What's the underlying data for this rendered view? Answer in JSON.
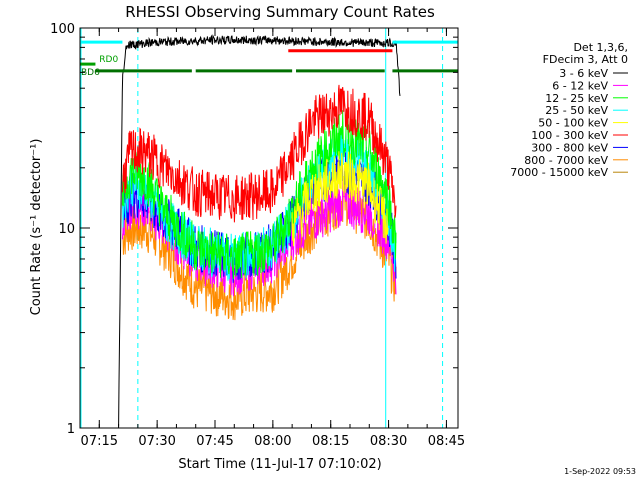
{
  "chart_data": {
    "type": "line",
    "title": "RHESSI Observing Summary Count Rates",
    "xlabel": "Start Time (11-Jul-17 07:10:02)",
    "ylabel": "Count Rate (s⁻¹ detector⁻¹)",
    "y_scale": "log",
    "ylim": [
      1,
      100
    ],
    "xlim_minutes": [
      "07:10",
      "08:48"
    ],
    "x_ticks": [
      "07:15",
      "07:30",
      "07:45",
      "08:00",
      "08:15",
      "08:30",
      "08:45"
    ],
    "y_ticks": [
      "1",
      "10",
      "100"
    ],
    "grid": false,
    "legend_placement": "right",
    "legend_header": [
      "Det 1,3,6,",
      "FDecim 3, Att 0"
    ],
    "series": [
      {
        "name": "3 - 6 keV",
        "color": "#000000",
        "points": [
          [
            "07:20",
            1
          ],
          [
            "07:21",
            55
          ],
          [
            "07:22",
            82
          ],
          [
            "07:30",
            85
          ],
          [
            "07:45",
            87
          ],
          [
            "08:00",
            87
          ],
          [
            "08:15",
            85
          ],
          [
            "08:30",
            84
          ],
          [
            "08:32",
            84
          ],
          [
            "08:33",
            45
          ]
        ]
      },
      {
        "name": "6 - 12 keV",
        "color": "#ff00ff",
        "points": [
          [
            "07:21",
            11
          ],
          [
            "07:23",
            13
          ],
          [
            "07:27",
            13
          ],
          [
            "07:32",
            10
          ],
          [
            "07:40",
            7
          ],
          [
            "07:50",
            6
          ],
          [
            "08:00",
            7
          ],
          [
            "08:05",
            9
          ],
          [
            "08:10",
            11
          ],
          [
            "08:18",
            13.5
          ],
          [
            "08:25",
            12
          ],
          [
            "08:30",
            9
          ],
          [
            "08:32",
            6
          ]
        ]
      },
      {
        "name": "12 - 25 keV",
        "color": "#00ff00",
        "points": [
          [
            "07:21",
            14
          ],
          [
            "07:23",
            19
          ],
          [
            "07:27",
            18
          ],
          [
            "07:32",
            12
          ],
          [
            "07:40",
            8
          ],
          [
            "07:50",
            7
          ],
          [
            "08:00",
            8
          ],
          [
            "08:05",
            12
          ],
          [
            "08:10",
            20
          ],
          [
            "08:18",
            30
          ],
          [
            "08:25",
            24
          ],
          [
            "08:30",
            14
          ],
          [
            "08:32",
            8
          ]
        ]
      },
      {
        "name": "25 - 50 keV",
        "color": "#00ffff",
        "points": [
          [
            "07:21",
            13
          ],
          [
            "07:23",
            17
          ],
          [
            "07:27",
            16
          ],
          [
            "07:32",
            11
          ],
          [
            "07:40",
            8
          ],
          [
            "07:50",
            7
          ],
          [
            "08:00",
            8
          ],
          [
            "08:05",
            11
          ],
          [
            "08:10",
            17
          ],
          [
            "08:18",
            25
          ],
          [
            "08:25",
            20
          ],
          [
            "08:30",
            12
          ],
          [
            "08:32",
            7
          ]
        ]
      },
      {
        "name": "50 - 100 keV",
        "color": "#ffff00",
        "points": [
          [
            "08:05",
            10
          ],
          [
            "08:10",
            15
          ],
          [
            "08:18",
            19
          ],
          [
            "08:25",
            16
          ],
          [
            "08:30",
            10
          ]
        ]
      },
      {
        "name": "100 - 300 keV",
        "color": "#ff0000",
        "points": [
          [
            "07:21",
            17
          ],
          [
            "07:23",
            24
          ],
          [
            "07:27",
            24
          ],
          [
            "07:32",
            20
          ],
          [
            "07:40",
            15
          ],
          [
            "07:50",
            14
          ],
          [
            "08:00",
            15
          ],
          [
            "08:05",
            22
          ],
          [
            "08:10",
            34
          ],
          [
            "08:18",
            41
          ],
          [
            "08:25",
            35
          ],
          [
            "08:30",
            20
          ],
          [
            "08:32",
            12
          ]
        ]
      },
      {
        "name": "300 - 800 keV",
        "color": "#0000ff",
        "points": [
          [
            "07:21",
            11
          ],
          [
            "07:23",
            15
          ],
          [
            "07:27",
            14
          ],
          [
            "07:32",
            11
          ],
          [
            "07:40",
            8
          ],
          [
            "07:50",
            7
          ],
          [
            "08:00",
            8
          ],
          [
            "08:05",
            11
          ],
          [
            "08:10",
            16
          ],
          [
            "08:18",
            20
          ],
          [
            "08:25",
            17
          ],
          [
            "08:30",
            11
          ],
          [
            "08:32",
            7
          ]
        ]
      },
      {
        "name": "800 - 7000 keV",
        "color": "#ff8c00",
        "points": [
          [
            "07:21",
            9
          ],
          [
            "07:23",
            10
          ],
          [
            "07:27",
            10
          ],
          [
            "07:32",
            8
          ],
          [
            "07:40",
            5
          ],
          [
            "07:50",
            4.5
          ],
          [
            "08:00",
            5
          ],
          [
            "08:05",
            7
          ],
          [
            "08:10",
            10
          ],
          [
            "08:18",
            14
          ],
          [
            "08:25",
            11
          ],
          [
            "08:30",
            7
          ],
          [
            "08:32",
            5
          ]
        ]
      },
      {
        "name": "7000 - 15000 keV",
        "color": "#b8860b",
        "points": []
      }
    ],
    "flag_bars": [
      {
        "label": "",
        "color": "#00ffff",
        "y": 85,
        "segments": [
          [
            "07:10",
            "07:21"
          ],
          [
            "08:31",
            "08:48"
          ]
        ]
      },
      {
        "label": "",
        "color": "#ff0000",
        "y": 77,
        "segments": [
          [
            "08:04",
            "08:31"
          ]
        ]
      },
      {
        "label": "RD0",
        "color": "#00a000",
        "y": 66,
        "segments": [
          [
            "07:10",
            "07:14"
          ]
        ]
      },
      {
        "label": "BD6",
        "color": "#007000",
        "y": 61,
        "segments": [
          [
            "07:14",
            "07:39"
          ],
          [
            "07:40",
            "08:05"
          ],
          [
            "08:06",
            "08:29"
          ],
          [
            "08:31",
            "08:48"
          ]
        ]
      }
    ],
    "cyan_vlines_solid": [
      "07:10",
      "08:29"
    ],
    "cyan_vlines_dashed": [
      "07:25",
      "08:44"
    ],
    "footer_timestamp": "1-Sep-2022 09:53"
  }
}
